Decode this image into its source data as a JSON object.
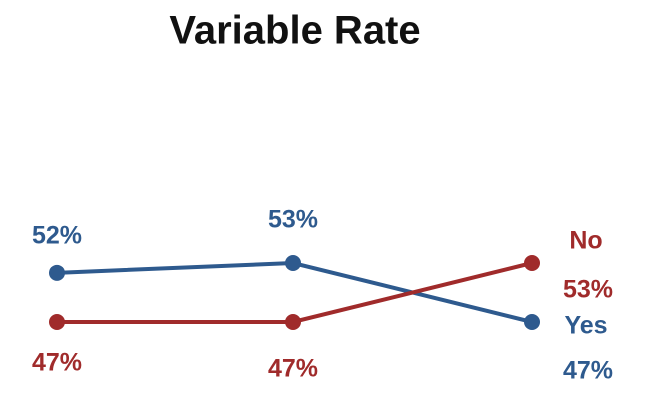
{
  "chart_data": {
    "type": "line",
    "title": "Variable Rate",
    "categories": [
      null,
      null,
      null
    ],
    "series": [
      {
        "name": "Yes",
        "color": "#2e5a8e",
        "values": [
          52,
          53,
          47
        ],
        "value_labels": [
          "52%",
          "53%",
          "47%"
        ]
      },
      {
        "name": "No",
        "color": "#a02b2b",
        "values": [
          47,
          47,
          53
        ],
        "value_labels": [
          "47%",
          "47%",
          "53%"
        ]
      }
    ]
  }
}
